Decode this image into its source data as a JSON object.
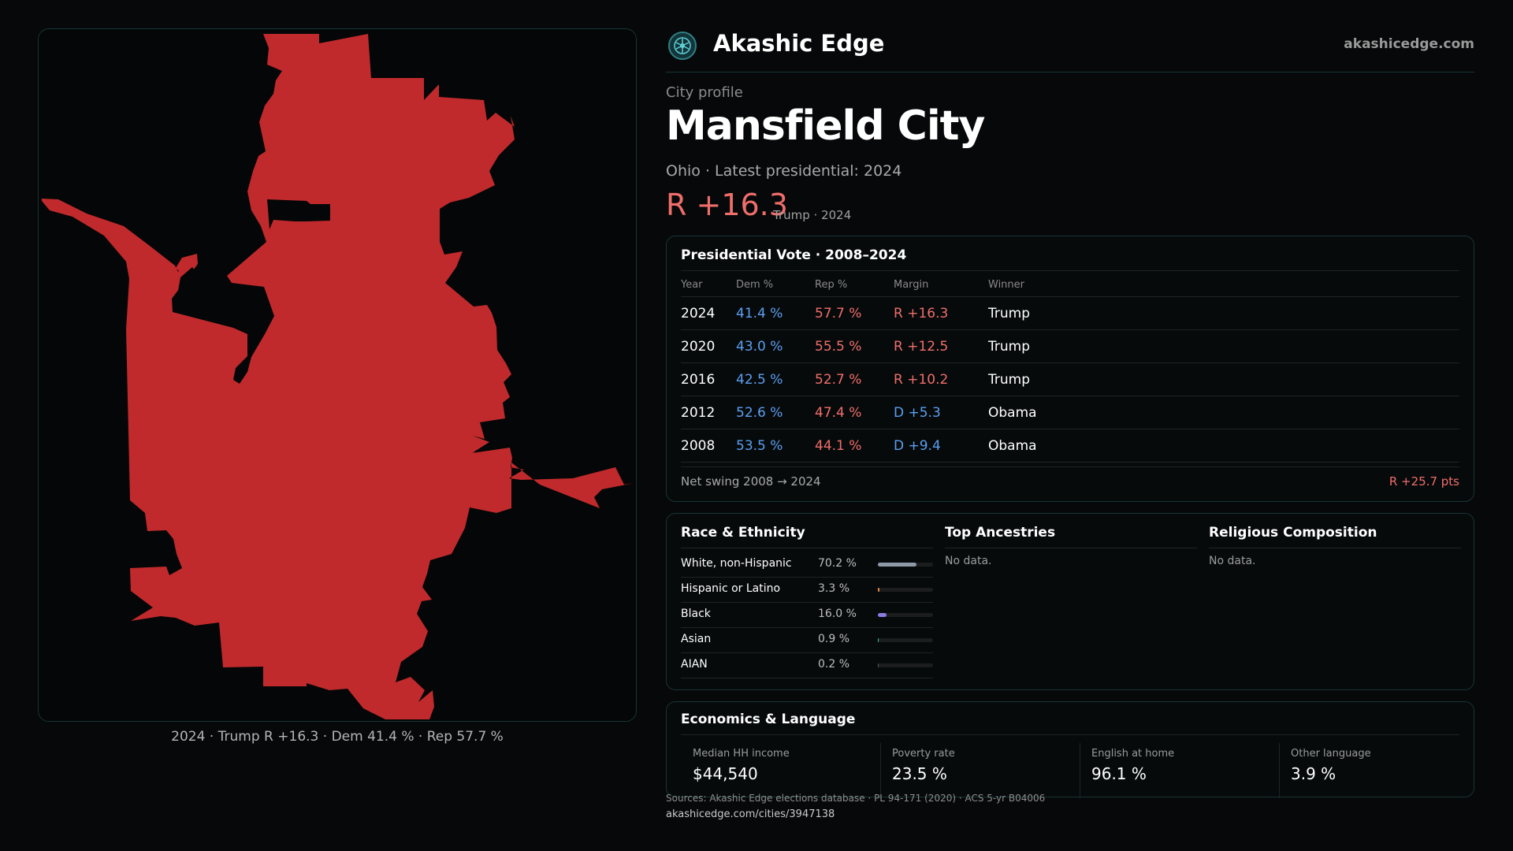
{
  "brand": {
    "name": "Akashic Edge",
    "url": "akashicedge.com",
    "logo_icon": "akashic-edge-logo-icon"
  },
  "profile": {
    "eyebrow": "City profile",
    "title": "Mansfield City",
    "subtitle": "Ohio · Latest presidential: 2024",
    "margin_big": "R +16.3",
    "margin_note": "Trump · 2024"
  },
  "map": {
    "caption": "2024 · Trump R +16.3 · Dem 41.4 % · Rep 57.7 %",
    "fill_color": "#c02a2c"
  },
  "vote": {
    "title": "Presidential Vote · 2008–2024",
    "headers": [
      "Year",
      "Dem %",
      "Rep %",
      "Margin",
      "Winner"
    ],
    "rows": [
      {
        "year": "2024",
        "dem": "41.4 %",
        "rep": "57.7 %",
        "margin": "R +16.3",
        "winner": "Trump"
      },
      {
        "year": "2020",
        "dem": "43.0 %",
        "rep": "55.5 %",
        "margin": "R +12.5",
        "winner": "Trump"
      },
      {
        "year": "2016",
        "dem": "42.5 %",
        "rep": "52.7 %",
        "margin": "R +10.2",
        "winner": "Trump"
      },
      {
        "year": "2012",
        "dem": "52.6 %",
        "rep": "47.4 %",
        "margin": "D +5.3",
        "winner": "Obama"
      },
      {
        "year": "2008",
        "dem": "53.5 %",
        "rep": "44.1 %",
        "margin": "D +9.4",
        "winner": "Obama"
      }
    ],
    "net_swing_label": "Net swing 2008 → 2024",
    "net_swing_value": "R +25.7 pts"
  },
  "race": {
    "title": "Race & Ethnicity",
    "rows": [
      {
        "label": "White, non-Hispanic",
        "value": "70.2 %",
        "share": 0.702,
        "color": "#8e9aa8"
      },
      {
        "label": "Hispanic or Latino",
        "value": "3.3 %",
        "share": 0.033,
        "color": "#e0893b"
      },
      {
        "label": "Black",
        "value": "16.0 %",
        "share": 0.16,
        "color": "#8a7be0"
      },
      {
        "label": "Asian",
        "value": "0.9 %",
        "share": 0.009,
        "color": "#3fb48a"
      },
      {
        "label": "AIAN",
        "value": "0.2 %",
        "share": 0.002,
        "color": "#555555"
      }
    ]
  },
  "ancestries": {
    "title": "Top Ancestries",
    "empty": "No data."
  },
  "religion": {
    "title": "Religious Composition",
    "empty": "No data."
  },
  "economics": {
    "title": "Economics & Language",
    "items": [
      {
        "label": "Median HH income",
        "value": "$44,540"
      },
      {
        "label": "Poverty rate",
        "value": "23.5 %"
      },
      {
        "label": "English at home",
        "value": "96.1 %"
      },
      {
        "label": "Other language",
        "value": "3.9 %"
      }
    ]
  },
  "footer": {
    "sources": "Sources: Akashic Edge elections database · PL 94-171 (2020) · ACS 5-yr B04006",
    "url": "akashicedge.com/cities/3947138"
  }
}
